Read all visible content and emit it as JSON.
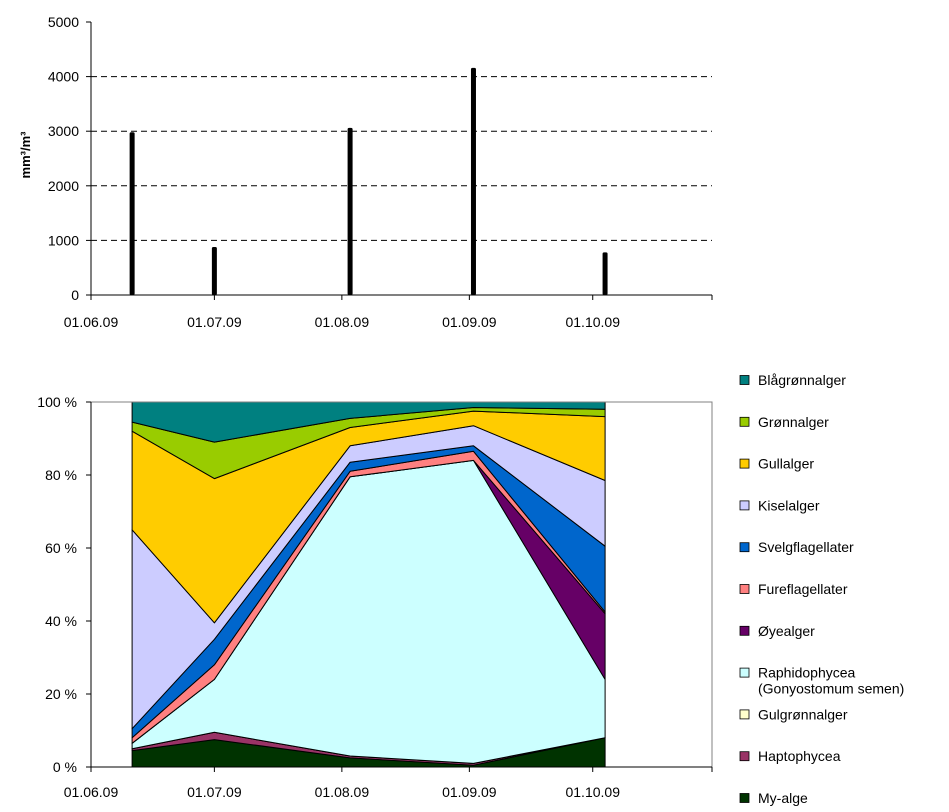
{
  "chart_data": [
    {
      "type": "bar",
      "xlabel": "",
      "ylabel": "mm³/m³",
      "ylim": [
        0,
        5000
      ],
      "y_ticks": [
        "0",
        "1000",
        "2000",
        "3000",
        "4000",
        "5000"
      ],
      "x_range": [
        "2009-06-01",
        "2009-10-30"
      ],
      "x_tick_labels": [
        {
          "date": "2009-06-01",
          "label": "01.06.09"
        },
        {
          "date": "2009-07-01",
          "label": "01.07.09"
        },
        {
          "date": "2009-08-01",
          "label": "01.08.09"
        },
        {
          "date": "2009-09-01",
          "label": "01.09.09"
        },
        {
          "date": "2009-10-01",
          "label": "01.10.09"
        }
      ],
      "grid": "horizontal dashed",
      "bars": [
        {
          "date": "2009-06-11",
          "value": 2980
        },
        {
          "date": "2009-07-01",
          "value": 880
        },
        {
          "date": "2009-08-03",
          "value": 3060
        },
        {
          "date": "2009-09-02",
          "value": 4160
        },
        {
          "date": "2009-10-04",
          "value": 780
        }
      ]
    },
    {
      "type": "area",
      "stacked": "percent",
      "ylim": [
        0,
        100
      ],
      "y_ticks": [
        "0 %",
        "20 %",
        "40 %",
        "60 %",
        "80 %",
        "100 %"
      ],
      "x_range": [
        "2009-06-01",
        "2009-10-30"
      ],
      "x_tick_labels": [
        {
          "date": "2009-06-01",
          "label": "01.06.09"
        },
        {
          "date": "2009-07-01",
          "label": "01.07.09"
        },
        {
          "date": "2009-08-01",
          "label": "01.08.09"
        },
        {
          "date": "2009-09-01",
          "label": "01.09.09"
        },
        {
          "date": "2009-10-01",
          "label": "01.10.09"
        }
      ],
      "legend_position": "right",
      "x": [
        "2009-06-11",
        "2009-07-01",
        "2009-08-03",
        "2009-09-02",
        "2009-10-04"
      ],
      "series": [
        {
          "name": "My-alge",
          "color": "#003300",
          "values": [
            4.5,
            7.5,
            2.5,
            0.5,
            8.0
          ]
        },
        {
          "name": "Haptophycea",
          "color": "#993366",
          "values": [
            0.5,
            2.0,
            0.5,
            0.5,
            0.0
          ]
        },
        {
          "name": "Gulgrønnalger",
          "color": "#ffffcc",
          "values": [
            0.0,
            0.0,
            0.0,
            0.0,
            0.0
          ]
        },
        {
          "name": "Raphidophycea (Gonyostomum semen)",
          "color": "#ccffff",
          "values": [
            1.5,
            14.5,
            76.5,
            83.0,
            16.0
          ]
        },
        {
          "name": "Øyealger",
          "color": "#660066",
          "values": [
            0.0,
            0.0,
            0.0,
            0.0,
            18.0
          ]
        },
        {
          "name": "Fureflagellater",
          "color": "#ff8080",
          "values": [
            1.5,
            4.0,
            1.5,
            2.5,
            0.5
          ]
        },
        {
          "name": "Svelgflagellater",
          "color": "#0066cc",
          "values": [
            2.5,
            7.0,
            2.5,
            1.5,
            18.0
          ]
        },
        {
          "name": "Kiselalger",
          "color": "#ccccff",
          "values": [
            54.5,
            4.5,
            4.5,
            5.5,
            18.0
          ]
        },
        {
          "name": "Gullalger",
          "color": "#ffcc00",
          "values": [
            27.0,
            39.5,
            5.0,
            4.0,
            17.5
          ]
        },
        {
          "name": "Grønnalger",
          "color": "#99cc00",
          "values": [
            2.5,
            10.0,
            2.5,
            1.0,
            2.0
          ]
        },
        {
          "name": "Blågrønnalger",
          "color": "#008080",
          "values": [
            5.5,
            11.0,
            4.5,
            1.5,
            2.0
          ]
        }
      ]
    }
  ]
}
